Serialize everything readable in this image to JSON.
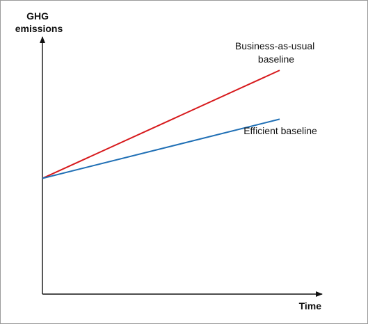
{
  "chart_data": {
    "type": "line",
    "title": "",
    "xlabel": "Time",
    "ylabel": [
      "GHG",
      "emissions"
    ],
    "grid": false,
    "legend": "inline labels",
    "series": [
      {
        "name": [
          "Business-as-usual",
          "baseline"
        ],
        "color": "#d7191c",
        "x": [
          0,
          1
        ],
        "y": [
          0.45,
          0.87
        ]
      },
      {
        "name": [
          "Efficient baseline"
        ],
        "color": "#1f6fb5",
        "x": [
          0,
          1
        ],
        "y": [
          0.45,
          0.68
        ]
      }
    ]
  }
}
